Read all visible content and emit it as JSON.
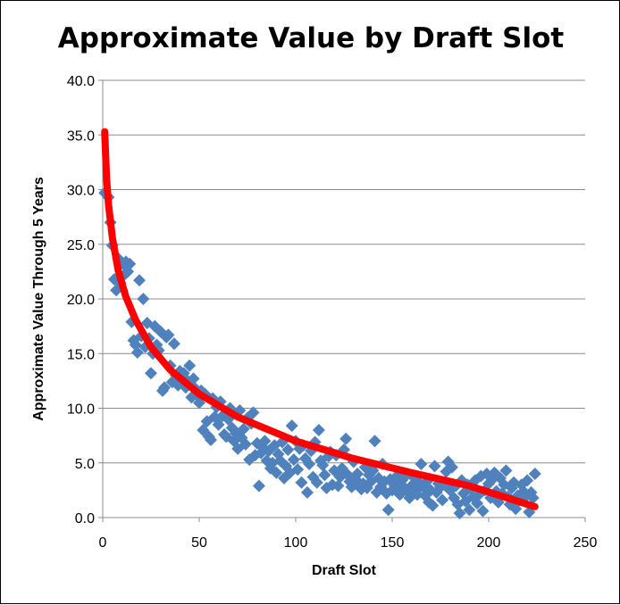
{
  "chart_data": {
    "type": "scatter",
    "title": "Approximate Value by Draft Slot",
    "xlabel": "Draft Slot",
    "ylabel": "Approximate Value Through 5 Years",
    "xlim": [
      0,
      250
    ],
    "ylim": [
      0,
      40
    ],
    "xticks": [
      0,
      50,
      100,
      150,
      200,
      250
    ],
    "yticks": [
      0,
      5,
      10,
      15,
      20,
      25,
      30,
      35,
      40
    ],
    "x_tick_labels": [
      "0",
      "50",
      "100",
      "150",
      "200",
      "250"
    ],
    "y_tick_labels": [
      "0.0",
      "5.0",
      "10.0",
      "15.0",
      "20.0",
      "25.0",
      "30.0",
      "35.0",
      "40.0"
    ],
    "grid": "horizontal",
    "legend": "none",
    "marker_color": "#4f81bd",
    "trend_color": "#ff0000",
    "series": [
      {
        "kind": "scatter",
        "points": [
          [
            1,
            29.7
          ],
          [
            3,
            29.3
          ],
          [
            4,
            27.0
          ],
          [
            5,
            24.9
          ],
          [
            6,
            21.8
          ],
          [
            7,
            20.8
          ],
          [
            8,
            23.7
          ],
          [
            9,
            21.5
          ],
          [
            10,
            22.0
          ],
          [
            11,
            23.1
          ],
          [
            12,
            23.4
          ],
          [
            13,
            22.5
          ],
          [
            14,
            23.2
          ],
          [
            15,
            17.9
          ],
          [
            16,
            16.2
          ],
          [
            17,
            15.8
          ],
          [
            18,
            15.1
          ],
          [
            19,
            21.7
          ],
          [
            20,
            16.6
          ],
          [
            21,
            20.0
          ],
          [
            22,
            15.6
          ],
          [
            23,
            17.8
          ],
          [
            24,
            16.4
          ],
          [
            25,
            13.2
          ],
          [
            26,
            15.0
          ],
          [
            27,
            17.5
          ],
          [
            28,
            15.8
          ],
          [
            29,
            15.3
          ],
          [
            30,
            17.0
          ],
          [
            31,
            11.6
          ],
          [
            32,
            11.9
          ],
          [
            33,
            16.5
          ],
          [
            34,
            16.7
          ],
          [
            35,
            13.9
          ],
          [
            36,
            12.4
          ],
          [
            37,
            15.9
          ],
          [
            38,
            13.0
          ],
          [
            39,
            12.1
          ],
          [
            40,
            13.4
          ],
          [
            41,
            12.8
          ],
          [
            42,
            13.2
          ],
          [
            43,
            11.9
          ],
          [
            44,
            12.5
          ],
          [
            45,
            13.9
          ],
          [
            46,
            11.0
          ],
          [
            47,
            12.7
          ],
          [
            48,
            11.8
          ],
          [
            49,
            11.2
          ],
          [
            50,
            10.5
          ],
          [
            51,
            11.6
          ],
          [
            52,
            8.0
          ],
          [
            53,
            11.3
          ],
          [
            54,
            8.8
          ],
          [
            55,
            7.4
          ],
          [
            56,
            7.1
          ],
          [
            57,
            10.9
          ],
          [
            58,
            9.2
          ],
          [
            59,
            10.1
          ],
          [
            60,
            8.5
          ],
          [
            61,
            10.6
          ],
          [
            62,
            9.3
          ],
          [
            63,
            7.6
          ],
          [
            64,
            7.4
          ],
          [
            65,
            9.0
          ],
          [
            66,
            10.0
          ],
          [
            67,
            8.2
          ],
          [
            68,
            7.0
          ],
          [
            69,
            7.7
          ],
          [
            70,
            6.3
          ],
          [
            71,
            9.8
          ],
          [
            72,
            7.3
          ],
          [
            73,
            8.1
          ],
          [
            74,
            6.7
          ],
          [
            75,
            9.1
          ],
          [
            76,
            5.3
          ],
          [
            77,
            8.6
          ],
          [
            78,
            9.6
          ],
          [
            79,
            5.7
          ],
          [
            80,
            6.8
          ],
          [
            81,
            2.9
          ],
          [
            82,
            5.9
          ],
          [
            83,
            6.4
          ],
          [
            84,
            7.0
          ],
          [
            85,
            5.2
          ],
          [
            86,
            6.1
          ],
          [
            87,
            4.5
          ],
          [
            88,
            5.0
          ],
          [
            89,
            6.6
          ],
          [
            90,
            4.1
          ],
          [
            91,
            5.8
          ],
          [
            92,
            5.2
          ],
          [
            93,
            6.9
          ],
          [
            94,
            3.6
          ],
          [
            95,
            4.7
          ],
          [
            96,
            6.2
          ],
          [
            97,
            4.1
          ],
          [
            98,
            8.4
          ],
          [
            99,
            5.3
          ],
          [
            100,
            7.0
          ],
          [
            101,
            4.4
          ],
          [
            102,
            6.3
          ],
          [
            103,
            3.2
          ],
          [
            104,
            6.6
          ],
          [
            105,
            5.4
          ],
          [
            106,
            2.3
          ],
          [
            107,
            4.9
          ],
          [
            108,
            6.1
          ],
          [
            109,
            3.7
          ],
          [
            110,
            6.9
          ],
          [
            111,
            3.2
          ],
          [
            112,
            8.0
          ],
          [
            113,
            5.2
          ],
          [
            114,
            4.8
          ],
          [
            115,
            3.9
          ],
          [
            116,
            2.7
          ],
          [
            117,
            5.6
          ],
          [
            118,
            6.0
          ],
          [
            119,
            3.0
          ],
          [
            120,
            4.3
          ],
          [
            121,
            5.7
          ],
          [
            122,
            2.9
          ],
          [
            123,
            3.7
          ],
          [
            124,
            4.5
          ],
          [
            125,
            6.2
          ],
          [
            126,
            7.2
          ],
          [
            127,
            3.9
          ],
          [
            128,
            3.3
          ],
          [
            129,
            2.8
          ],
          [
            130,
            5.1
          ],
          [
            131,
            3.5
          ],
          [
            132,
            4.0
          ],
          [
            133,
            3.0
          ],
          [
            134,
            2.6
          ],
          [
            135,
            3.1
          ],
          [
            136,
            4.6
          ],
          [
            137,
            2.7
          ],
          [
            138,
            3.9
          ],
          [
            139,
            3.3
          ],
          [
            140,
            4.3
          ],
          [
            141,
            7.0
          ],
          [
            142,
            2.3
          ],
          [
            143,
            3.6
          ],
          [
            144,
            2.8
          ],
          [
            145,
            4.9
          ],
          [
            146,
            3.3
          ],
          [
            147,
            2.2
          ],
          [
            148,
            0.7
          ],
          [
            149,
            3.5
          ],
          [
            150,
            2.5
          ],
          [
            151,
            3.0
          ],
          [
            152,
            2.6
          ],
          [
            153,
            3.9
          ],
          [
            154,
            2.1
          ],
          [
            155,
            3.4
          ],
          [
            156,
            2.8
          ],
          [
            157,
            3.8
          ],
          [
            158,
            2.4
          ],
          [
            159,
            1.8
          ],
          [
            160,
            2.9
          ],
          [
            161,
            3.7
          ],
          [
            162,
            2.4
          ],
          [
            163,
            2.1
          ],
          [
            164,
            3.2
          ],
          [
            165,
            4.9
          ],
          [
            166,
            2.8
          ],
          [
            167,
            2.0
          ],
          [
            168,
            3.3
          ],
          [
            169,
            1.4
          ],
          [
            170,
            2.5
          ],
          [
            171,
            1.1
          ],
          [
            172,
            4.7
          ],
          [
            173,
            2.3
          ],
          [
            174,
            3.1
          ],
          [
            175,
            2.8
          ],
          [
            176,
            1.6
          ],
          [
            177,
            3.0
          ],
          [
            178,
            4.2
          ],
          [
            179,
            5.1
          ],
          [
            180,
            2.5
          ],
          [
            181,
            4.6
          ],
          [
            182,
            1.8
          ],
          [
            183,
            2.9
          ],
          [
            184,
            1.2
          ],
          [
            185,
            0.4
          ],
          [
            186,
            3.4
          ],
          [
            187,
            2.2
          ],
          [
            188,
            1.5
          ],
          [
            189,
            3.0
          ],
          [
            190,
            0.7
          ],
          [
            191,
            2.6
          ],
          [
            192,
            1.9
          ],
          [
            193,
            3.4
          ],
          [
            194,
            1.3
          ],
          [
            195,
            2.1
          ],
          [
            196,
            3.8
          ],
          [
            197,
            0.6
          ],
          [
            198,
            2.5
          ],
          [
            199,
            4.0
          ],
          [
            200,
            3.1
          ],
          [
            201,
            1.8
          ],
          [
            202,
            3.5
          ],
          [
            203,
            4.1
          ],
          [
            204,
            2.4
          ],
          [
            205,
            1.4
          ],
          [
            206,
            3.6
          ],
          [
            207,
            2.2
          ],
          [
            208,
            3.0
          ],
          [
            209,
            4.3
          ],
          [
            210,
            1.9
          ],
          [
            211,
            1.2
          ],
          [
            212,
            2.7
          ],
          [
            213,
            3.2
          ],
          [
            214,
            0.8
          ],
          [
            215,
            2.0
          ],
          [
            216,
            1.6
          ],
          [
            217,
            3.0
          ],
          [
            218,
            2.4
          ],
          [
            219,
            1.9
          ],
          [
            220,
            3.4
          ],
          [
            221,
            0.5
          ],
          [
            222,
            2.3
          ],
          [
            223,
            1.8
          ],
          [
            224,
            4.0
          ]
        ]
      },
      {
        "kind": "trendline",
        "model": "logarithmic",
        "points": [
          [
            1,
            35.3
          ],
          [
            2,
            31.0
          ],
          [
            3,
            28.6
          ],
          [
            5,
            25.6
          ],
          [
            8,
            22.6
          ],
          [
            12,
            20.2
          ],
          [
            17,
            18.1
          ],
          [
            25,
            15.6
          ],
          [
            35,
            13.5
          ],
          [
            50,
            11.3
          ],
          [
            70,
            9.2
          ],
          [
            100,
            7.0
          ],
          [
            130,
            5.4
          ],
          [
            160,
            4.1
          ],
          [
            190,
            2.9
          ],
          [
            224,
            1.0
          ]
        ]
      }
    ]
  }
}
